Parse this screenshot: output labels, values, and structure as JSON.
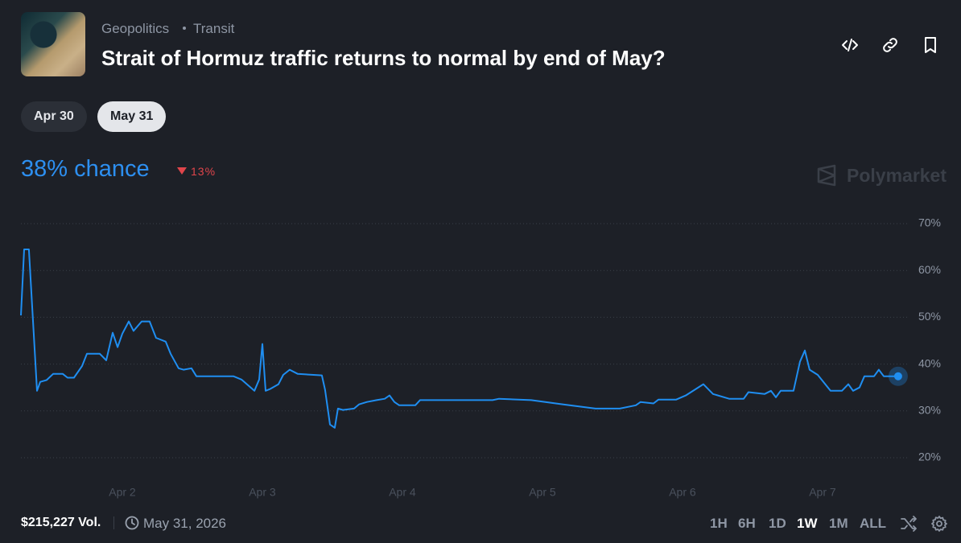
{
  "header": {
    "category": "Geopolitics",
    "subcategory": "Transit",
    "title": "Strait of Hormuz traffic returns to normal by end of May?"
  },
  "tabs": [
    "Apr 30",
    "May 31"
  ],
  "selected_tab": 1,
  "chance_label": "38% chance",
  "change_label": "13%",
  "brand": "Polymarket",
  "footer": {
    "volume": "$215,227 Vol.",
    "end_date": "May 31, 2026"
  },
  "ranges": [
    "1H",
    "6H",
    "1D",
    "1W",
    "1M",
    "ALL"
  ],
  "selected_range": 3,
  "chart_data": {
    "type": "line",
    "x": [
      1.276,
      1.299,
      1.333,
      1.356,
      1.391,
      1.414,
      1.46,
      1.506,
      1.575,
      1.609,
      1.655,
      1.713,
      1.747,
      1.839,
      1.885,
      1.931,
      1.966,
      2.0,
      2.046,
      2.08,
      2.138,
      2.195,
      2.241,
      2.31,
      2.345,
      2.402,
      2.437,
      2.494,
      2.529,
      2.793,
      2.851,
      2.943,
      2.977,
      3.0,
      3.023,
      3.057,
      3.115,
      3.149,
      3.195,
      3.253,
      3.425,
      3.448,
      3.483,
      3.517,
      3.54,
      3.575,
      3.655,
      3.69,
      3.747,
      3.816,
      3.874,
      3.908,
      3.943,
      3.977,
      4.092,
      4.126,
      4.644,
      4.69,
      4.92,
      5.149,
      5.379,
      5.552,
      5.667,
      5.701,
      5.793,
      5.828,
      5.954,
      6.023,
      6.149,
      6.218,
      6.333,
      6.437,
      6.471,
      6.586,
      6.632,
      6.667,
      6.701,
      6.793,
      6.839,
      6.874,
      6.908,
      6.966,
      7.057,
      7.138,
      7.184,
      7.218,
      7.264,
      7.299,
      7.368,
      7.402,
      7.437,
      7.54
    ],
    "series": [
      {
        "color": "#1f8ef1",
        "values": [
          50.4,
          64.5,
          64.5,
          52.5,
          34.3,
          36.2,
          36.6,
          37.9,
          37.9,
          37.1,
          37.1,
          39.6,
          42.2,
          42.2,
          40.8,
          46.7,
          43.6,
          46.5,
          49.1,
          47.1,
          49.1,
          49.1,
          45.6,
          44.8,
          42.2,
          39.1,
          38.8,
          39.1,
          37.4,
          37.4,
          36.7,
          34.3,
          36.7,
          44.3,
          34.3,
          34.7,
          35.7,
          37.7,
          38.8,
          37.9,
          37.6,
          34.5,
          27.1,
          26.4,
          30.5,
          30.2,
          30.5,
          31.4,
          31.9,
          32.3,
          32.6,
          33.3,
          31.9,
          31.2,
          31.2,
          32.3,
          32.3,
          32.6,
          32.3,
          31.4,
          30.5,
          30.5,
          31.2,
          31.9,
          31.6,
          32.4,
          32.4,
          33.3,
          35.7,
          33.6,
          32.6,
          32.6,
          34.0,
          33.6,
          34.3,
          32.9,
          34.3,
          34.3,
          40.5,
          42.9,
          38.8,
          37.7,
          34.3,
          34.3,
          35.7,
          34.3,
          35.0,
          37.4,
          37.4,
          38.8,
          37.4,
          37.4
        ]
      }
    ],
    "xlim": [
      1.276,
      7.621
    ],
    "xticks": [
      {
        "value": 2,
        "label": "Apr 2"
      },
      {
        "value": 3,
        "label": "Apr 3"
      },
      {
        "value": 4,
        "label": "Apr 4"
      },
      {
        "value": 5,
        "label": "Apr 5"
      },
      {
        "value": 6,
        "label": "Apr 6"
      },
      {
        "value": 7,
        "label": "Apr 7"
      }
    ],
    "ylim": [
      20,
      70
    ],
    "yticks": [
      {
        "value": 20,
        "label": "20%"
      },
      {
        "value": 30,
        "label": "30%"
      },
      {
        "value": 40,
        "label": "40%"
      },
      {
        "value": 50,
        "label": "50%"
      },
      {
        "value": 60,
        "label": "60%"
      },
      {
        "value": 70,
        "label": "70%"
      }
    ],
    "grid": true
  }
}
